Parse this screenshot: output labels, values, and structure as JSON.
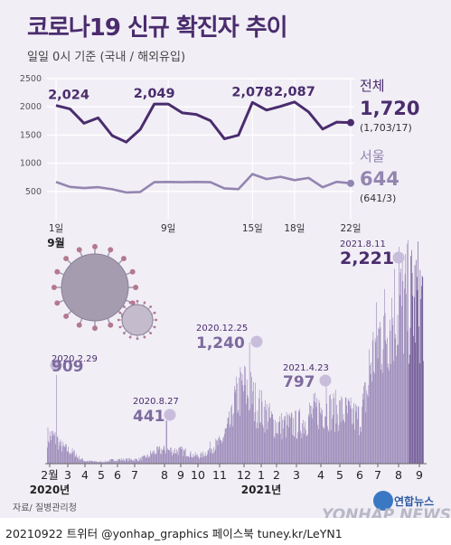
{
  "title": "코로나19 신규 확진자 추이",
  "subtitle": "일일 0시 기준 (국내 / 해외유입)",
  "source": "자료/ 질병관리청",
  "footer": "20210922 트위터 @yonhap_graphics  페이스북 tuney.kr/LeYN1",
  "logo_name": "연합뉴스",
  "logo_brand": "YONHAP NEWS",
  "colors": {
    "dark": "#4a2c6d",
    "light": "#9385b0",
    "bar": "#8f7cb0",
    "marker": "#c8bddb",
    "background": "#f1eef6"
  },
  "chart_data": [
    {
      "type": "line",
      "title": "",
      "x_labels": [
        "1일",
        "9일",
        "15일",
        "18일",
        "22일"
      ],
      "x_label_positions": [
        1,
        9,
        15,
        18,
        22
      ],
      "month_label": "9월",
      "y_ticks": [
        "500",
        "1000",
        "1500",
        "2000",
        "2500"
      ],
      "ylim": [
        0,
        2500
      ],
      "x": [
        1,
        2,
        3,
        4,
        5,
        6,
        7,
        8,
        9,
        10,
        11,
        12,
        13,
        14,
        15,
        16,
        17,
        18,
        19,
        20,
        21,
        22
      ],
      "series": [
        {
          "name": "전체",
          "values": [
            2024,
            1961,
            1708,
            1804,
            1490,
            1375,
            1597,
            2049,
            2050,
            1892,
            1865,
            1755,
            1433,
            1497,
            2078,
            1943,
            2008,
            2087,
            1910,
            1605,
            1729,
            1720
          ],
          "annotations": [
            {
              "x": 1,
              "label": "2,024"
            },
            {
              "x": 8,
              "label": "2,049"
            },
            {
              "x": 15,
              "label": "2,078"
            },
            {
              "x": 18,
              "label": "2,087"
            }
          ],
          "last_value": "1,720",
          "detail": "(1,703/17)"
        },
        {
          "name": "서울",
          "values": [
            667,
            580,
            560,
            575,
            538,
            482,
            490,
            663,
            669,
            663,
            668,
            664,
            555,
            540,
            808,
            720,
            760,
            700,
            739,
            575,
            670,
            644
          ],
          "last_value": "644",
          "detail": "(641/3)"
        }
      ]
    },
    {
      "type": "bar",
      "title": "",
      "x_labels": [
        "2월",
        "3",
        "4",
        "5",
        "6",
        "7",
        "8",
        "9",
        "10",
        "11",
        "12",
        "1",
        "2",
        "3",
        "4",
        "5",
        "6",
        "7",
        "8",
        "9"
      ],
      "year_labels": [
        {
          "label": "2020년",
          "month_index": 0
        },
        {
          "label": "2021년",
          "month_index": 11
        }
      ],
      "annotations": [
        {
          "date": "2020.2.29",
          "value": 909,
          "value_label": "909"
        },
        {
          "date": "2020.8.27",
          "value": 441,
          "value_label": "441"
        },
        {
          "date": "2020.12.25",
          "value": 1240,
          "value_label": "1,240"
        },
        {
          "date": "2021.4.23",
          "value": 797,
          "value_label": "797"
        },
        {
          "date": "2021.8.11",
          "value": 2221,
          "value_label": "2,221"
        }
      ],
      "monthly_typical_daily_cases": [
        {
          "month": "2020-02",
          "value": 300
        },
        {
          "month": "2020-03",
          "value": 150
        },
        {
          "month": "2020-04",
          "value": 30
        },
        {
          "month": "2020-05",
          "value": 20
        },
        {
          "month": "2020-06",
          "value": 45
        },
        {
          "month": "2020-07",
          "value": 45
        },
        {
          "month": "2020-08",
          "value": 150
        },
        {
          "month": "2020-09",
          "value": 140
        },
        {
          "month": "2020-10",
          "value": 80
        },
        {
          "month": "2020-11",
          "value": 230
        },
        {
          "month": "2020-12",
          "value": 850
        },
        {
          "month": "2021-01",
          "value": 600
        },
        {
          "month": "2021-02",
          "value": 420
        },
        {
          "month": "2021-03",
          "value": 430
        },
        {
          "month": "2021-04",
          "value": 600
        },
        {
          "month": "2021-05",
          "value": 580
        },
        {
          "month": "2021-06",
          "value": 500
        },
        {
          "month": "2021-07",
          "value": 1400
        },
        {
          "month": "2021-08",
          "value": 1750
        },
        {
          "month": "2021-09",
          "value": 1800
        }
      ]
    }
  ]
}
